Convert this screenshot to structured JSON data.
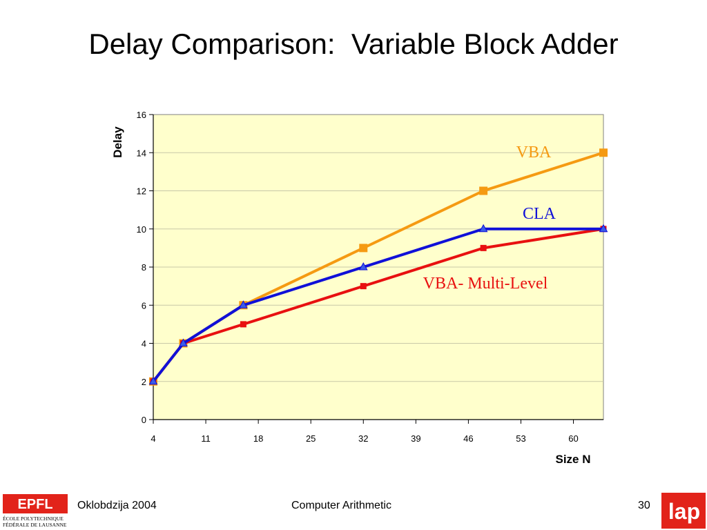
{
  "slide": {
    "title": "Delay Comparison:  Variable Block Adder",
    "footer_left": "Oklobdzija 2004",
    "footer_center": "Computer Arithmetic",
    "footer_right": "30",
    "logo_left_text": [
      "ÉCOLE POLYTECHNIQUE",
      "FÉDÉRALE DE LAUSANNE"
    ],
    "logo_left_mark": "EPFL",
    "logo_right_text": "lap"
  },
  "chart_data": {
    "type": "line",
    "title": "",
    "xlabel": "Size N",
    "ylabel": "Delay",
    "x_ticks": [
      4,
      11,
      18,
      25,
      32,
      39,
      46,
      53,
      60
    ],
    "xlim": [
      4,
      64
    ],
    "ylim": [
      0,
      16
    ],
    "y_ticks": [
      0,
      2,
      4,
      6,
      8,
      10,
      12,
      14,
      16
    ],
    "grid": "horizontal",
    "plot_background": "#FFFFCC",
    "series": [
      {
        "name": "VBA",
        "color": "#F59A12",
        "marker": "square",
        "x": [
          4,
          8,
          16,
          32,
          48,
          64
        ],
        "y": [
          2,
          4,
          6,
          9,
          12,
          14
        ]
      },
      {
        "name": "CLA",
        "color": "#1010D8",
        "marker": "triangle",
        "x": [
          4,
          8,
          16,
          32,
          48,
          64
        ],
        "y": [
          2,
          4,
          6,
          8,
          10,
          10
        ]
      },
      {
        "name": "VBA- Multi-Level",
        "color": "#E81010",
        "marker": "square-small",
        "x": [
          4,
          8,
          16,
          32,
          48,
          64
        ],
        "y": [
          2,
          4,
          5,
          7,
          9,
          10
        ]
      }
    ]
  }
}
